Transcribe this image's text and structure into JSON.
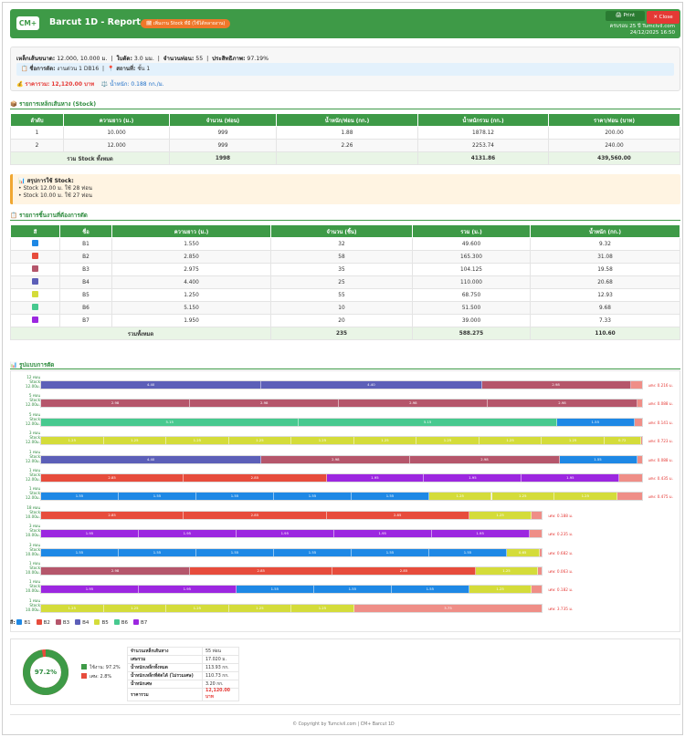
{
  "header": {
    "logo": "CM+",
    "title": "Barcut 1D - Report",
    "badge": "🗓 เพิ่มงาน Stock ที่มี (ใช้ได้หลายงาน)",
    "print_label": "🖨 Print",
    "close_label": "✕ Close",
    "meta_line1": "ครบรอบ 25 ปี Tumcivil.com",
    "meta_line2": "24/12/2025 16:50"
  },
  "summary": {
    "steel_size_label": "เหล็กเส้นขนาด:",
    "steel_size_value": "12.000, 10.000 ม.",
    "blade_label": "ใบตัด:",
    "blade_value": "3.0 มม.",
    "pieces_label": "จำนวนท่อน:",
    "pieces_value": "55",
    "efficiency_label": "ประสิทธิภาพ:",
    "efficiency_value": "97.19%",
    "job_label": "ชื่อการตัด:",
    "job_value": "งานด่วน 1 DB16",
    "location_label": "สถานที่:",
    "location_value": "ชั้น 1",
    "price_label": "ราคารวม:",
    "price_value": "12,120.00 บาท",
    "weight_label": "น้ำหนัก:",
    "weight_value": "0.188 กก./ม."
  },
  "stock_section": {
    "title": "รายการเหล็กเส้นหาง (Stock)",
    "headers": [
      "ลำดับ",
      "ความยาว (ม.)",
      "จำนวน (ท่อน)",
      "น้ำหนัก/ท่อน (กก.)",
      "น้ำหนักรวม (กก.)",
      "ราคา/ท่อน (บาท)"
    ],
    "rows": [
      [
        "1",
        "10.000",
        "999",
        "1.88",
        "1878.12",
        "200.00"
      ],
      [
        "2",
        "12.000",
        "999",
        "2.26",
        "2253.74",
        "240.00"
      ]
    ],
    "total": {
      "label": "รวม Stock ทั้งหมด",
      "qty": "1998",
      "weight": "4131.86",
      "price": "439,560.00"
    }
  },
  "stock_usage": {
    "head": "สรุปการใช้ Stock:",
    "lines": [
      "• Stock 12.00 ม. ใช้ 28 ท่อน",
      "• Stock 10.00 ม. ใช้ 27 ท่อน"
    ]
  },
  "parts_section": {
    "title": "รายการชิ้นงานที่ต้องการตัด",
    "headers": [
      "สี",
      "ชื่อ",
      "ความยาว (ม.)",
      "จำนวน (ชิ้น)",
      "รวม (ม.)",
      "น้ำหนัก (กก.)"
    ],
    "rows": [
      {
        "color": "#1e88e5",
        "name": "B1",
        "length": "1.550",
        "qty": "32",
        "total": "49.600",
        "weight": "9.32"
      },
      {
        "color": "#e74c3c",
        "name": "B2",
        "length": "2.850",
        "qty": "58",
        "total": "165.300",
        "weight": "31.08"
      },
      {
        "color": "#b5566b",
        "name": "B3",
        "length": "2.975",
        "qty": "35",
        "total": "104.125",
        "weight": "19.58"
      },
      {
        "color": "#5c5fb8",
        "name": "B4",
        "length": "4.400",
        "qty": "25",
        "total": "110.000",
        "weight": "20.68"
      },
      {
        "color": "#d4dc3a",
        "name": "B5",
        "length": "1.250",
        "qty": "55",
        "total": "68.750",
        "weight": "12.93"
      },
      {
        "color": "#47c98f",
        "name": "B6",
        "length": "5.150",
        "qty": "10",
        "total": "51.500",
        "weight": "9.68"
      },
      {
        "color": "#9c27e0",
        "name": "B7",
        "length": "1.950",
        "qty": "20",
        "total": "39.000",
        "weight": "7.33"
      }
    ],
    "total": {
      "label": "รวมทั้งหมด",
      "qty": "235",
      "total": "588.275",
      "weight": "110.60"
    }
  },
  "pattern_section": {
    "title": "รูปแบบการตัด",
    "rows": [
      {
        "count": "12 ท่อน",
        "stock": "Stock 12.00ม.",
        "stock_len": 12,
        "segs": [
          [
            "B4",
            4.4
          ],
          [
            "B4",
            4.4
          ],
          [
            "B3",
            2.975
          ]
        ],
        "waste_note": "เศษ: 0.216 ม."
      },
      {
        "count": "5 ท่อน",
        "stock": "Stock 12.00ม.",
        "stock_len": 12,
        "segs": [
          [
            "B3",
            2.975
          ],
          [
            "B3",
            2.975
          ],
          [
            "B3",
            2.975
          ],
          [
            "B3",
            2.975
          ]
        ],
        "waste_note": "เศษ: 0.088 ม."
      },
      {
        "count": "5 ท่อน",
        "stock": "Stock 12.00ม.",
        "stock_len": 12,
        "segs": [
          [
            "B6",
            5.15
          ],
          [
            "B6",
            5.15
          ],
          [
            "B1",
            1.55
          ]
        ],
        "waste_note": "เศษ: 0.141 ม."
      },
      {
        "count": "3 ท่อน",
        "stock": "Stock 12.00ม.",
        "stock_len": 12,
        "segs": [
          [
            "B5",
            1.25
          ],
          [
            "B5",
            1.25
          ],
          [
            "B5",
            1.25
          ],
          [
            "B5",
            1.25
          ],
          [
            "B5",
            1.25
          ],
          [
            "B5",
            1.25
          ],
          [
            "B5",
            1.25
          ],
          [
            "B5",
            1.25
          ],
          [
            "B5",
            1.25
          ],
          [
            "B5",
            0.725
          ]
        ],
        "waste_note": "เศษ: 0.723 ม."
      },
      {
        "count": "1 ท่อน",
        "stock": "Stock 12.00ม.",
        "stock_len": 12,
        "segs": [
          [
            "B4",
            4.4
          ],
          [
            "B3",
            2.975
          ],
          [
            "B3",
            2.975
          ],
          [
            "B1",
            1.55
          ]
        ],
        "waste_note": "เศษ: 0.088 ม."
      },
      {
        "count": "1 ท่อน",
        "stock": "Stock 12.00ม.",
        "stock_len": 12,
        "segs": [
          [
            "B2",
            2.85
          ],
          [
            "B2",
            2.85
          ],
          [
            "B7",
            1.95
          ],
          [
            "B7",
            1.95
          ],
          [
            "B7",
            1.95
          ]
        ],
        "waste_note": "เศษ: 0.435 ม."
      },
      {
        "count": "1 ท่อน",
        "stock": "Stock 12.00ม.",
        "stock_len": 12,
        "segs": [
          [
            "B1",
            1.55
          ],
          [
            "B1",
            1.55
          ],
          [
            "B1",
            1.55
          ],
          [
            "B1",
            1.55
          ],
          [
            "B1",
            1.55
          ],
          [
            "B5",
            1.25
          ],
          [
            "B5",
            1.25
          ],
          [
            "B5",
            1.25
          ]
        ],
        "waste_note": "เศษ: 0.475 ม."
      },
      {
        "count": "18 ท่อน",
        "stock": "Stock 10.00ม.",
        "stock_len": 10,
        "segs": [
          [
            "B2",
            2.85
          ],
          [
            "B2",
            2.85
          ],
          [
            "B2",
            2.85
          ],
          [
            "B5",
            1.25
          ]
        ],
        "waste_note": "เศษ: 0.188 ม."
      },
      {
        "count": "3 ท่อน",
        "stock": "Stock 10.00ม.",
        "stock_len": 10,
        "segs": [
          [
            "B7",
            1.95
          ],
          [
            "B7",
            1.95
          ],
          [
            "B7",
            1.95
          ],
          [
            "B7",
            1.95
          ],
          [
            "B7",
            1.95
          ]
        ],
        "waste_note": "เศษ: 0.235 ม."
      },
      {
        "count": "3 ท่อน",
        "stock": "Stock 10.00ม.",
        "stock_len": 10,
        "segs": [
          [
            "B1",
            1.55
          ],
          [
            "B1",
            1.55
          ],
          [
            "B1",
            1.55
          ],
          [
            "B1",
            1.55
          ],
          [
            "B1",
            1.55
          ],
          [
            "B1",
            1.55
          ],
          [
            "B5",
            0.65
          ]
        ],
        "waste_note": "เศษ: 0.682 ม."
      },
      {
        "count": "1 ท่อน",
        "stock": "Stock 10.00ม.",
        "stock_len": 10,
        "segs": [
          [
            "B3",
            2.975
          ],
          [
            "B2",
            2.85
          ],
          [
            "B2",
            2.85
          ],
          [
            "B5",
            1.25
          ]
        ],
        "waste_note": "เศษ: 0.063 ม."
      },
      {
        "count": "1 ท่อน",
        "stock": "Stock 10.00ม.",
        "stock_len": 10,
        "segs": [
          [
            "B7",
            1.95
          ],
          [
            "B7",
            1.95
          ],
          [
            "B1",
            1.55
          ],
          [
            "B1",
            1.55
          ],
          [
            "B1",
            1.55
          ],
          [
            "B5",
            1.25
          ]
        ],
        "waste_note": "เศษ: 0.182 ม."
      },
      {
        "count": "1 ท่อน",
        "stock": "Stock 10.00ม.",
        "stock_len": 10,
        "segs": [
          [
            "B5",
            1.25
          ],
          [
            "B5",
            1.25
          ],
          [
            "B5",
            1.25
          ],
          [
            "B5",
            1.25
          ],
          [
            "B5",
            1.25
          ]
        ],
        "waste_label": "3.75",
        "waste_note": "เศษ: 3.735 ม."
      }
    ]
  },
  "legend": {
    "label": "สี:",
    "items": [
      "B1",
      "B2",
      "B3",
      "B4",
      "B5",
      "B6",
      "B7"
    ]
  },
  "summary_bottom": {
    "donut_pct": "97.2%",
    "used_pct": 97.2,
    "used_label": "ใช้งาน: 97.2%",
    "waste_label": "เศษ: 2.8%",
    "info": [
      [
        "จำนวนเหล็กเส้นหาง",
        "55 ท่อน"
      ],
      [
        "เศษรวม",
        "17.020 ม."
      ],
      [
        "น้ำหนักเหล็กทั้งหมด",
        "113.93 กก."
      ],
      [
        "น้ำหนักเหล็กที่ตัดได้ (ไม่รวมเศษ)",
        "110.73 กก."
      ],
      [
        "น้ำหนักเศษ",
        "3.20 กก."
      ],
      [
        "ราคารวม",
        "12,120.00 บาท"
      ]
    ]
  },
  "footer": "© Copyright by Tumcivil.com | CM+ Barcut 1D"
}
